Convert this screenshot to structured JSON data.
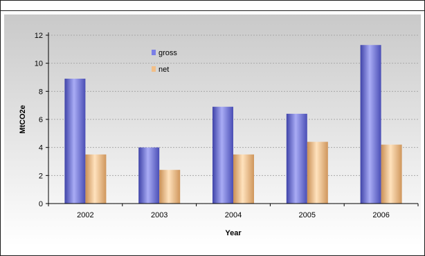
{
  "chart_data": {
    "type": "bar",
    "categories": [
      "2002",
      "2003",
      "2004",
      "2005",
      "2006"
    ],
    "series": [
      {
        "name": "gross",
        "values": [
          8.9,
          4.0,
          6.9,
          6.4,
          11.3
        ],
        "color": "#7b7fe6"
      },
      {
        "name": "net",
        "values": [
          3.5,
          2.4,
          3.5,
          4.4,
          4.2
        ],
        "color": "#f2bf88"
      }
    ],
    "xlabel": "Year",
    "ylabel": "MtCO2e",
    "ylim": [
      0,
      12
    ],
    "yticks": [
      "0",
      "2",
      "4",
      "6",
      "8",
      "10",
      "12"
    ],
    "grid": true,
    "legend_position": "top-left inside plot"
  }
}
